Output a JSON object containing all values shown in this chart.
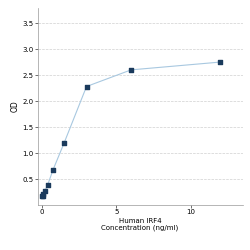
{
  "x": [
    0.0,
    0.047,
    0.094,
    0.188,
    0.375,
    0.75,
    1.5,
    3.0,
    6.0,
    12.0
  ],
  "y": [
    0.165,
    0.175,
    0.21,
    0.27,
    0.38,
    0.68,
    1.2,
    2.28,
    2.6,
    2.75
  ],
  "line_color": "#a8c8e0",
  "marker_color": "#1a3a5c",
  "marker_size": 3.5,
  "xlabel_line1": "Human IRF4",
  "xlabel_line2": "Concentration (ng/ml)",
  "ylabel": "OD",
  "xlim": [
    -0.3,
    13.5
  ],
  "ylim": [
    0,
    3.8
  ],
  "yticks": [
    0.5,
    1.0,
    1.5,
    2.0,
    2.5,
    3.0,
    3.5
  ],
  "xticks": [
    0,
    5,
    10
  ],
  "xticklabels": [
    "0",
    "5",
    "10"
  ],
  "grid_color": "#d0d0d0",
  "background_color": "#ffffff",
  "xlabel_fontsize": 5,
  "ylabel_fontsize": 5.5,
  "tick_fontsize": 5
}
